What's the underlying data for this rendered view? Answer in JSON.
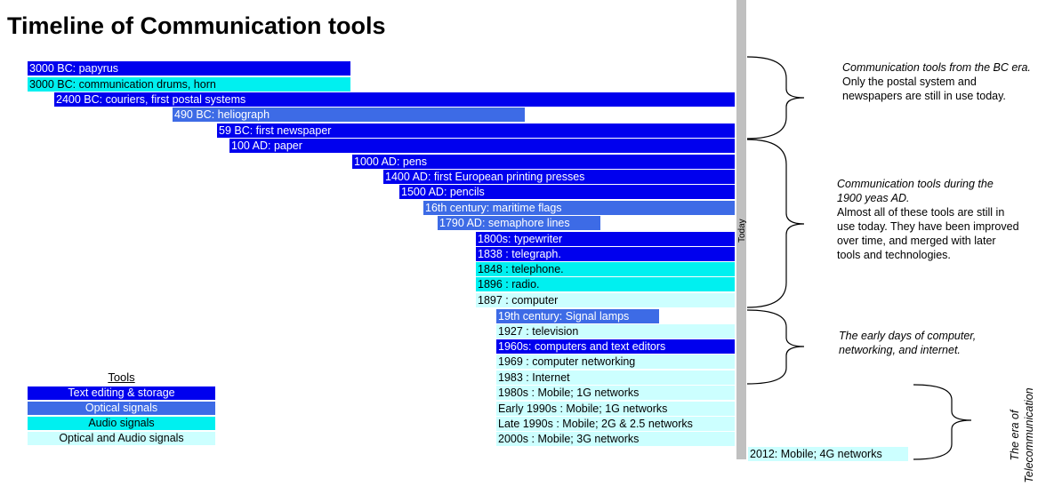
{
  "title": "Timeline of Communication tools",
  "today_label": "Today",
  "colors": {
    "text_storage": "#0000ee",
    "optical": "#3d6be6",
    "audio": "#00f0f0",
    "optical_audio": "#ccffff"
  },
  "legend": {
    "title": "Tools",
    "items": [
      {
        "label": "Text editing & storage",
        "category": "text_storage"
      },
      {
        "label": "Optical signals",
        "category": "optical"
      },
      {
        "label": "Audio signals",
        "category": "audio"
      },
      {
        "label": "Optical and Audio signals",
        "category": "optical_audio"
      }
    ]
  },
  "events": [
    {
      "label": "3000 BC: papyrus",
      "category": "text_storage"
    },
    {
      "label": "3000 BC: communication drums, horn",
      "category": "audio"
    },
    {
      "label": "2400 BC: couriers, first postal systems",
      "category": "text_storage"
    },
    {
      "label": "490 BC: heliograph",
      "category": "optical"
    },
    {
      "label": "59 BC: first newspaper",
      "category": "text_storage"
    },
    {
      "label": "100 AD: paper",
      "category": "text_storage"
    },
    {
      "label": "1000 AD: pens",
      "category": "text_storage"
    },
    {
      "label": "1400 AD: first European printing presses",
      "category": "text_storage"
    },
    {
      "label": "1500 AD: pencils",
      "category": "text_storage"
    },
    {
      "label": "16th century: maritime flags",
      "category": "optical"
    },
    {
      "label": "1790 AD: semaphore lines",
      "category": "optical"
    },
    {
      "label": "1800s: typewriter",
      "category": "text_storage"
    },
    {
      "label": "1838 : telegraph.",
      "category": "text_storage"
    },
    {
      "label": "1848 : telephone.",
      "category": "audio"
    },
    {
      "label": "1896 : radio.",
      "category": "audio"
    },
    {
      "label": "1897 : computer",
      "category": "optical_audio"
    },
    {
      "label": "19th century: Signal lamps",
      "category": "optical"
    },
    {
      "label": "1927 : television",
      "category": "optical_audio"
    },
    {
      "label": "1960s: computers and text editors",
      "category": "text_storage"
    },
    {
      "label": "1969 : computer networking",
      "category": "optical_audio"
    },
    {
      "label": "1983 : Internet",
      "category": "optical_audio"
    },
    {
      "label": "1980s : Mobile; 1G networks",
      "category": "optical_audio"
    },
    {
      "label": "Early 1990s : Mobile; 1G networks",
      "category": "optical_audio"
    },
    {
      "label": "Late 1990s : Mobile; 2G & 2.5 networks",
      "category": "optical_audio"
    },
    {
      "label": "2000s : Mobile; 3G networks",
      "category": "optical_audio"
    },
    {
      "label": "2012: Mobile; 4G networks",
      "category": "optical_audio"
    }
  ],
  "notes": [
    {
      "italic": "Communication tools from the BC era.",
      "plain": "Only the postal system and newspapers are still in use today."
    },
    {
      "italic": "Communication tools during the 1900 yeas AD.",
      "plain": "Almost all of these tools are still in use today. They have been improved over time, and merged with later tools and technologies."
    },
    {
      "italic": "The early days of computer, networking, and internet.",
      "plain": ""
    }
  ],
  "telecom_label": "The era of Telecommunication"
}
